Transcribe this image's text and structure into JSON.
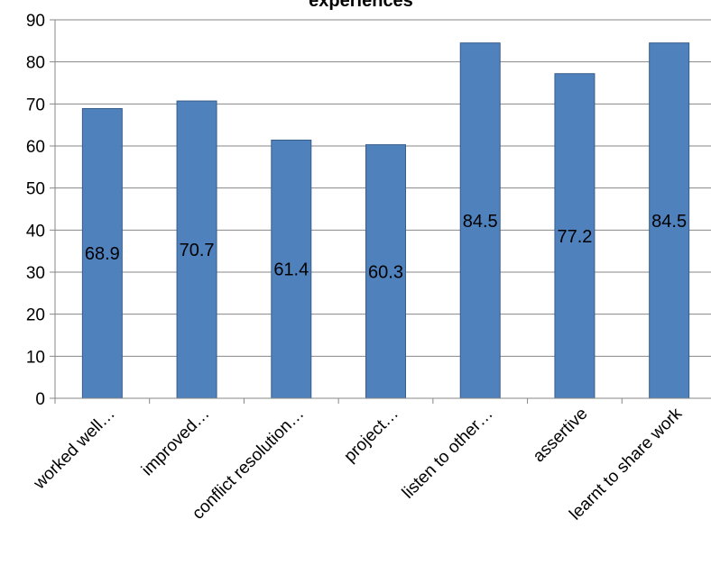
{
  "chart_data": {
    "type": "bar",
    "title": "experiences",
    "categories": [
      "worked well…",
      "improved…",
      "conflict resolution…",
      "project…",
      "listen to other…",
      "assertive",
      "learnt to share work"
    ],
    "series": [
      {
        "values": [
          68.9,
          70.7,
          61.4,
          60.3,
          84.5,
          77.2,
          84.5
        ]
      }
    ],
    "data_labels": [
      "68.9",
      "70.7",
      "61.4",
      "60.3",
      "84.5",
      "77.2",
      "84.5"
    ],
    "yticks": [
      "0",
      "10",
      "20",
      "30",
      "40",
      "50",
      "60",
      "70",
      "80",
      "90"
    ],
    "ylim": [
      0,
      90
    ],
    "xlabel": "",
    "ylabel": "",
    "grid": true,
    "legend": "none",
    "colors": {
      "bar": "#4F81BD",
      "bar_edge": "#385D8A",
      "grid": "#878787",
      "axis": "#878787"
    }
  }
}
